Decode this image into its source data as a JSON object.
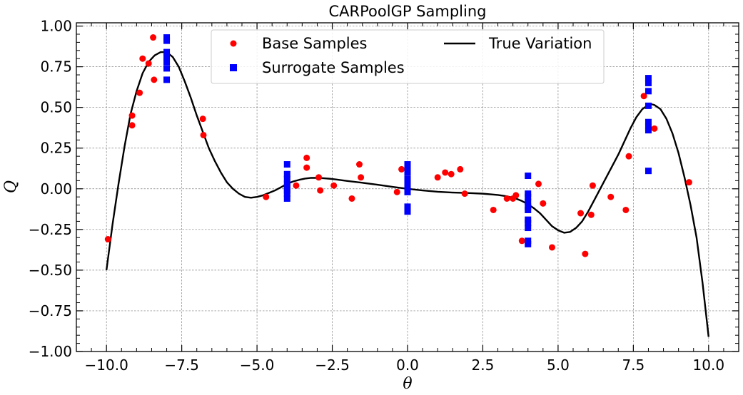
{
  "chart_data": {
    "type": "scatter",
    "title": "CARPoolGP Sampling",
    "xlabel": "θ",
    "ylabel": "Q",
    "xlim": [
      -11,
      11
    ],
    "ylim": [
      -1.0,
      1.02
    ],
    "xticks": [
      -10,
      -7.5,
      -5,
      -2.5,
      0,
      2.5,
      5,
      7.5,
      10
    ],
    "xtick_labels": [
      "−10.0",
      "−7.5",
      "−5.0",
      "−2.5",
      "0.0",
      "2.5",
      "5.0",
      "7.5",
      "10.0"
    ],
    "yticks": [
      -1.0,
      -0.75,
      -0.5,
      -0.25,
      0.0,
      0.25,
      0.5,
      0.75,
      1.0
    ],
    "ytick_labels": [
      "−1.00",
      "−0.75",
      "−0.50",
      "−0.25",
      "0.00",
      "0.25",
      "0.50",
      "0.75",
      "1.00"
    ],
    "grid": true,
    "legend_position": "top-center",
    "series": [
      {
        "name": "Base Samples",
        "kind": "scatter",
        "marker": "circle",
        "color": "#ff0000",
        "points": [
          [
            -9.95,
            -0.31
          ],
          [
            -9.15,
            0.45
          ],
          [
            -9.15,
            0.39
          ],
          [
            -8.9,
            0.59
          ],
          [
            -8.8,
            0.8
          ],
          [
            -8.6,
            0.77
          ],
          [
            -8.45,
            0.93
          ],
          [
            -8.42,
            0.67
          ],
          [
            -6.8,
            0.43
          ],
          [
            -6.78,
            0.33
          ],
          [
            -4.7,
            -0.05
          ],
          [
            -3.7,
            0.02
          ],
          [
            -3.35,
            0.19
          ],
          [
            -3.35,
            0.13
          ],
          [
            -2.95,
            0.07
          ],
          [
            -2.9,
            -0.01
          ],
          [
            -2.45,
            0.02
          ],
          [
            -1.85,
            -0.06
          ],
          [
            -1.6,
            0.15
          ],
          [
            -1.55,
            0.07
          ],
          [
            -0.35,
            -0.02
          ],
          [
            -0.2,
            0.12
          ],
          [
            1.0,
            0.07
          ],
          [
            1.25,
            0.1
          ],
          [
            1.45,
            0.09
          ],
          [
            1.75,
            0.12
          ],
          [
            1.9,
            -0.03
          ],
          [
            2.85,
            -0.13
          ],
          [
            3.3,
            -0.06
          ],
          [
            3.5,
            -0.06
          ],
          [
            3.6,
            -0.04
          ],
          [
            3.8,
            -0.32
          ],
          [
            4.35,
            0.03
          ],
          [
            4.5,
            -0.09
          ],
          [
            4.8,
            -0.36
          ],
          [
            5.75,
            -0.15
          ],
          [
            5.9,
            -0.4
          ],
          [
            6.1,
            -0.16
          ],
          [
            6.15,
            0.02
          ],
          [
            6.75,
            -0.05
          ],
          [
            7.25,
            -0.13
          ],
          [
            7.35,
            0.2
          ],
          [
            7.85,
            0.57
          ],
          [
            8.2,
            0.37
          ],
          [
            9.35,
            0.04
          ]
        ]
      },
      {
        "name": "Surrogate Samples",
        "kind": "scatter",
        "marker": "square",
        "color": "#0000ff",
        "points": [
          [
            -8,
            0.93
          ],
          [
            -8,
            0.91
          ],
          [
            -8,
            0.84
          ],
          [
            -8,
            0.81
          ],
          [
            -8,
            0.78
          ],
          [
            -8,
            0.74
          ],
          [
            -8,
            0.67
          ],
          [
            -4,
            0.15
          ],
          [
            -4,
            0.09
          ],
          [
            -4,
            0.06
          ],
          [
            -4,
            0.03
          ],
          [
            -4,
            0.01
          ],
          [
            -4,
            -0.01
          ],
          [
            -4,
            -0.03
          ],
          [
            -4,
            -0.06
          ],
          [
            0,
            0.15
          ],
          [
            0,
            0.13
          ],
          [
            0,
            0.1
          ],
          [
            0,
            0.06
          ],
          [
            0,
            0.03
          ],
          [
            0,
            0.01
          ],
          [
            0,
            -0.02
          ],
          [
            0,
            -0.11
          ],
          [
            0,
            -0.14
          ],
          [
            4,
            0.08
          ],
          [
            4,
            -0.03
          ],
          [
            4,
            -0.05
          ],
          [
            4,
            -0.08
          ],
          [
            4,
            -0.11
          ],
          [
            4,
            -0.13
          ],
          [
            4,
            -0.19
          ],
          [
            4,
            -0.21
          ],
          [
            4,
            -0.24
          ],
          [
            4,
            -0.32
          ],
          [
            4,
            -0.34
          ],
          [
            8,
            0.68
          ],
          [
            8,
            0.65
          ],
          [
            8,
            0.6
          ],
          [
            8,
            0.51
          ],
          [
            8,
            0.41
          ],
          [
            8,
            0.38
          ],
          [
            8,
            0.36
          ],
          [
            8,
            0.11
          ]
        ]
      },
      {
        "name": "True Variation",
        "kind": "line",
        "color": "#000000",
        "points": [
          [
            -10,
            -0.5
          ],
          [
            -9.8,
            -0.22
          ],
          [
            -9.6,
            0.03
          ],
          [
            -9.4,
            0.26
          ],
          [
            -9.2,
            0.46
          ],
          [
            -9.0,
            0.6
          ],
          [
            -8.8,
            0.71
          ],
          [
            -8.6,
            0.78
          ],
          [
            -8.4,
            0.82
          ],
          [
            -8.2,
            0.84
          ],
          [
            -8.0,
            0.84
          ],
          [
            -7.8,
            0.81
          ],
          [
            -7.6,
            0.75
          ],
          [
            -7.4,
            0.66
          ],
          [
            -7.2,
            0.56
          ],
          [
            -7.0,
            0.45
          ],
          [
            -6.8,
            0.35
          ],
          [
            -6.6,
            0.25
          ],
          [
            -6.4,
            0.17
          ],
          [
            -6.2,
            0.1
          ],
          [
            -6.0,
            0.04
          ],
          [
            -5.8,
            0.0
          ],
          [
            -5.6,
            -0.03
          ],
          [
            -5.4,
            -0.05
          ],
          [
            -5.2,
            -0.055
          ],
          [
            -5.0,
            -0.05
          ],
          [
            -4.8,
            -0.04
          ],
          [
            -4.6,
            -0.025
          ],
          [
            -4.4,
            -0.01
          ],
          [
            -4.2,
            0.01
          ],
          [
            -4.0,
            0.03
          ],
          [
            -3.8,
            0.045
          ],
          [
            -3.6,
            0.055
          ],
          [
            -3.4,
            0.063
          ],
          [
            -3.2,
            0.067
          ],
          [
            -3.0,
            0.067
          ],
          [
            -2.8,
            0.065
          ],
          [
            -2.6,
            0.062
          ],
          [
            -2.4,
            0.058
          ],
          [
            -2.2,
            0.053
          ],
          [
            -2.0,
            0.048
          ],
          [
            -1.5,
            0.037
          ],
          [
            -1.0,
            0.025
          ],
          [
            -0.5,
            0.012
          ],
          [
            0.0,
            0.0
          ],
          [
            0.5,
            -0.01
          ],
          [
            1.0,
            -0.018
          ],
          [
            1.5,
            -0.023
          ],
          [
            2.0,
            -0.026
          ],
          [
            2.5,
            -0.03
          ],
          [
            3.0,
            -0.038
          ],
          [
            3.3,
            -0.046
          ],
          [
            3.6,
            -0.06
          ],
          [
            3.8,
            -0.075
          ],
          [
            4.0,
            -0.095
          ],
          [
            4.2,
            -0.12
          ],
          [
            4.4,
            -0.15
          ],
          [
            4.6,
            -0.19
          ],
          [
            4.8,
            -0.23
          ],
          [
            5.0,
            -0.255
          ],
          [
            5.2,
            -0.27
          ],
          [
            5.4,
            -0.265
          ],
          [
            5.6,
            -0.24
          ],
          [
            5.8,
            -0.2
          ],
          [
            6.0,
            -0.14
          ],
          [
            6.2,
            -0.07
          ],
          [
            6.4,
            0.0
          ],
          [
            6.6,
            0.07
          ],
          [
            6.8,
            0.14
          ],
          [
            7.0,
            0.21
          ],
          [
            7.2,
            0.29
          ],
          [
            7.4,
            0.37
          ],
          [
            7.6,
            0.44
          ],
          [
            7.8,
            0.49
          ],
          [
            8.0,
            0.515
          ],
          [
            8.1,
            0.52
          ],
          [
            8.2,
            0.515
          ],
          [
            8.4,
            0.49
          ],
          [
            8.6,
            0.43
          ],
          [
            8.8,
            0.34
          ],
          [
            9.0,
            0.22
          ],
          [
            9.2,
            0.07
          ],
          [
            9.4,
            -0.1
          ],
          [
            9.6,
            -0.3
          ],
          [
            9.8,
            -0.58
          ],
          [
            10.0,
            -0.91
          ]
        ]
      }
    ]
  }
}
